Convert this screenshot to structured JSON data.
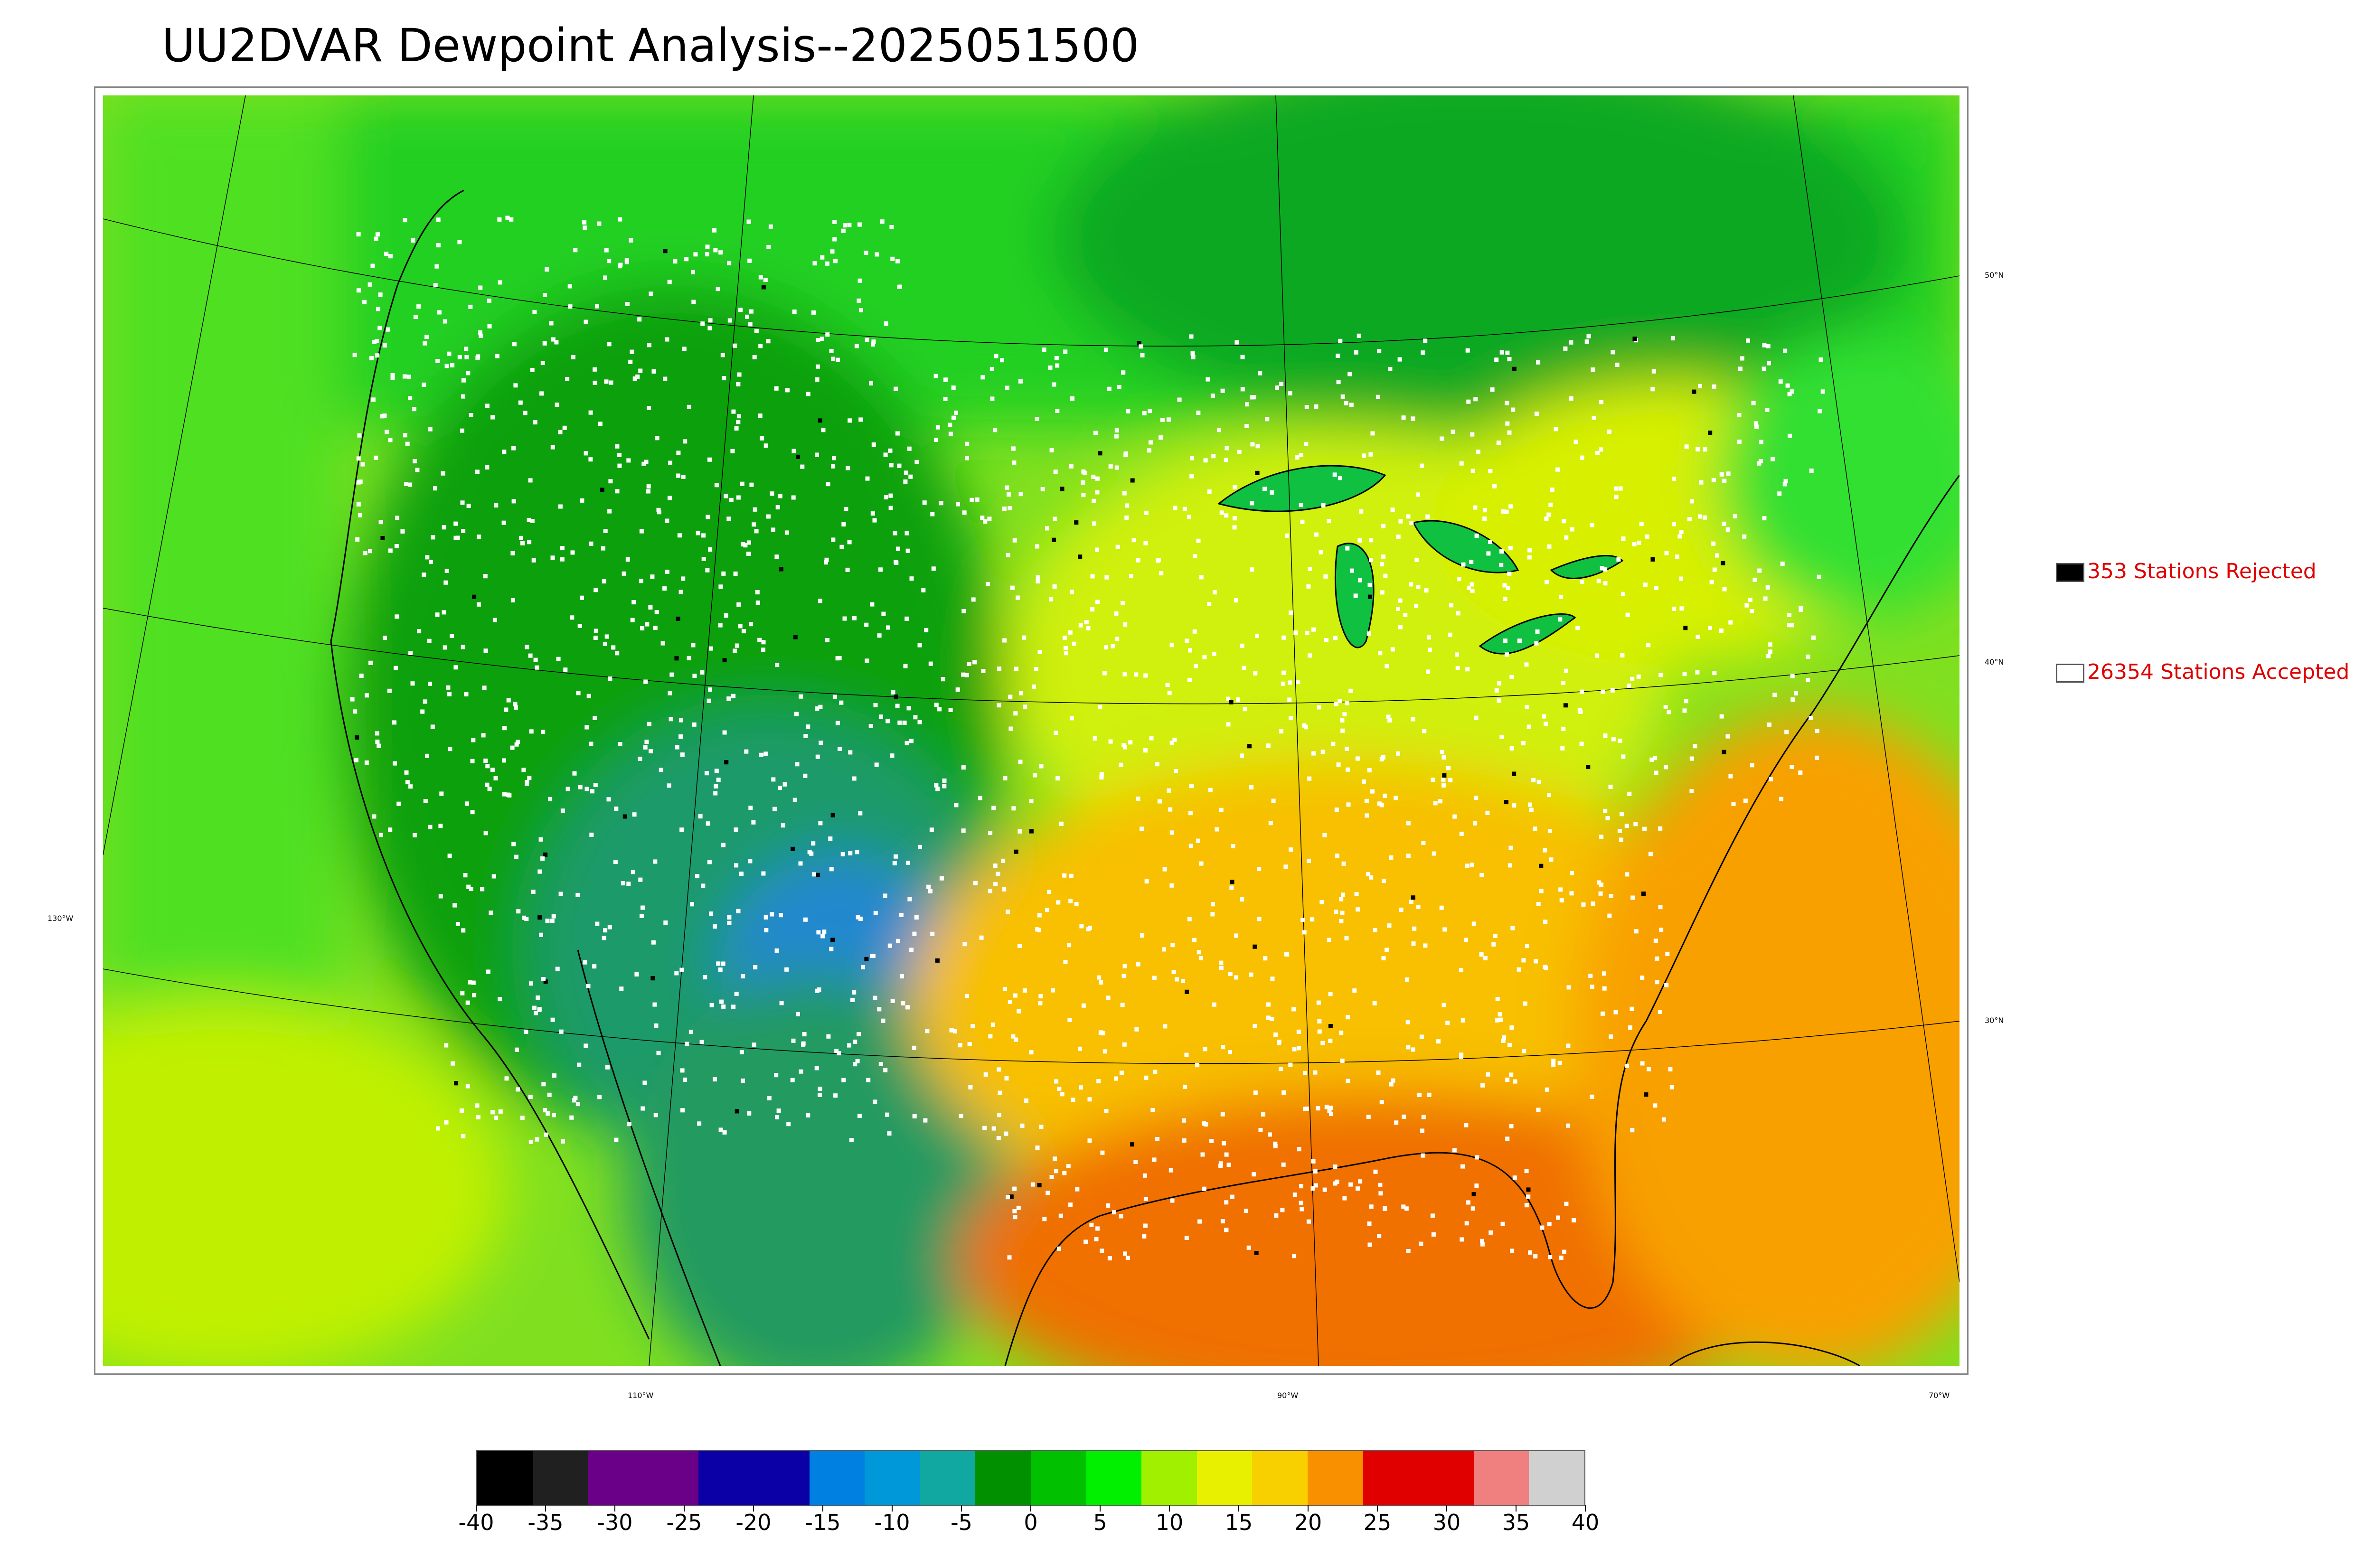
{
  "title": "UU2DVAR Dewpoint Analysis--2025051500",
  "map": {
    "lat_labels": [
      "50°N",
      "40°N",
      "30°N"
    ],
    "lon_labels": [
      "130°W",
      "110°W",
      "90°W",
      "70°W"
    ]
  },
  "legend": {
    "rejected": {
      "label": "353 Stations Rejected",
      "swatch": "#000000"
    },
    "accepted": {
      "label": "26354 Stations Accepted",
      "swatch": "#ffffff"
    }
  },
  "colorbar": {
    "ticks": [
      "-40",
      "-35",
      "-30",
      "-25",
      "-20",
      "-15",
      "-10",
      "-5",
      "0",
      "5",
      "10",
      "15",
      "20",
      "25",
      "30",
      "35",
      "40"
    ],
    "colors": [
      "#000000",
      "#202020",
      "#6a0088",
      "#6a0088",
      "#0a00a6",
      "#0a00a6",
      "#0080e0",
      "#0098d8",
      "#10a8a0",
      "#009000",
      "#00c000",
      "#00f000",
      "#a0f000",
      "#e8f000",
      "#f8d000",
      "#f89000",
      "#e00000",
      "#e00000",
      "#f08080",
      "#d0d0d0"
    ]
  },
  "chart_data": {
    "type": "heatmap",
    "title": "UU2DVAR Dewpoint Analysis--2025051500",
    "value_range": [
      -40,
      40
    ],
    "colorbar_ticks": [
      -40,
      -35,
      -30,
      -25,
      -20,
      -15,
      -10,
      -5,
      0,
      5,
      10,
      15,
      20,
      25,
      30,
      35,
      40
    ],
    "stations_rejected": 353,
    "stations_accepted": 26354
  }
}
